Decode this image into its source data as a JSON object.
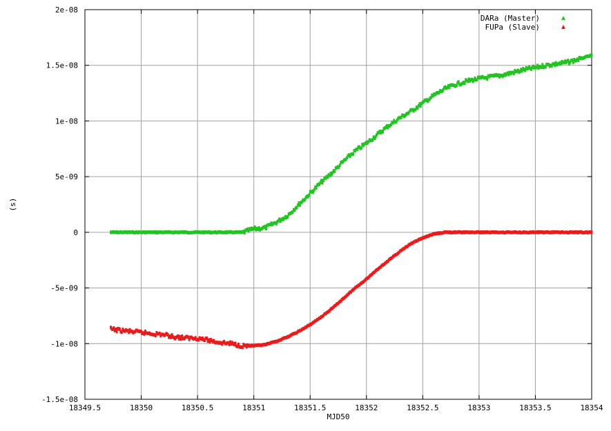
{
  "chart_data": {
    "type": "scatter",
    "title": "",
    "xlabel": "MJD50",
    "ylabel": "(s)",
    "xlim": [
      18349.5,
      18354
    ],
    "ylim": [
      -1.5e-08,
      2e-08
    ],
    "grid": true,
    "legend_position": "top-right",
    "x_ticks": [
      18349.5,
      18350,
      18350.5,
      18351,
      18351.5,
      18352,
      18352.5,
      18353,
      18353.5,
      18354
    ],
    "x_tick_labels": [
      "18349.5",
      "18350",
      "18350.5",
      "18351",
      "18351.5",
      "18352",
      "18352.5",
      "18353",
      "18353.5",
      "18354"
    ],
    "y_ticks": [
      -1.5e-08,
      -1e-08,
      -5e-09,
      0,
      5e-09,
      1e-08,
      1.5e-08,
      2e-08
    ],
    "y_tick_labels": [
      "-1.5e-08",
      "-1e-08",
      "-5e-09",
      "0",
      "5e-09",
      "1e-08",
      "1.5e-08",
      "2e-08"
    ],
    "series": [
      {
        "name": "DARa (Master)",
        "color": "#22c322",
        "marker": "triangle",
        "points": [
          [
            18349.73,
            0
          ],
          [
            18350.0,
            0
          ],
          [
            18350.5,
            0
          ],
          [
            18350.9,
            0
          ],
          [
            18351.0,
            3e-10
          ],
          [
            18351.1,
            4e-10
          ],
          [
            18351.2,
            9e-10
          ],
          [
            18351.3,
            1.5e-09
          ],
          [
            18351.4,
            2.5e-09
          ],
          [
            18351.5,
            3.5e-09
          ],
          [
            18351.6,
            4.5e-09
          ],
          [
            18351.7,
            5.4e-09
          ],
          [
            18351.8,
            6.4e-09
          ],
          [
            18351.9,
            7.3e-09
          ],
          [
            18352.0,
            8e-09
          ],
          [
            18352.1,
            8.8e-09
          ],
          [
            18352.2,
            9.6e-09
          ],
          [
            18352.3,
            1.03e-08
          ],
          [
            18352.4,
            1.09e-08
          ],
          [
            18352.5,
            1.16e-08
          ],
          [
            18352.6,
            1.23e-08
          ],
          [
            18352.7,
            1.29e-08
          ],
          [
            18352.8,
            1.33e-08
          ],
          [
            18352.9,
            1.36e-08
          ],
          [
            18353.0,
            1.38e-08
          ],
          [
            18353.2,
            1.41e-08
          ],
          [
            18353.4,
            1.46e-08
          ],
          [
            18353.6,
            1.5e-08
          ],
          [
            18353.8,
            1.53e-08
          ],
          [
            18354.0,
            1.59e-08
          ]
        ]
      },
      {
        "name": "FUPa (Slave)",
        "color": "#e81c1c",
        "marker": "triangle",
        "points": [
          [
            18349.73,
            -8.7e-09
          ],
          [
            18349.8,
            -8.8e-09
          ],
          [
            18349.9,
            -8.9e-09
          ],
          [
            18350.0,
            -9e-09
          ],
          [
            18350.1,
            -9.1e-09
          ],
          [
            18350.2,
            -9.2e-09
          ],
          [
            18350.3,
            -9.4e-09
          ],
          [
            18350.4,
            -9.5e-09
          ],
          [
            18350.5,
            -9.5e-09
          ],
          [
            18350.6,
            -9.7e-09
          ],
          [
            18350.7,
            -9.9e-09
          ],
          [
            18350.8,
            -1e-08
          ],
          [
            18350.9,
            -1.02e-08
          ],
          [
            18351.0,
            -1.02e-08
          ],
          [
            18351.1,
            -1.01e-08
          ],
          [
            18351.2,
            -9.8e-09
          ],
          [
            18351.3,
            -9.4e-09
          ],
          [
            18351.4,
            -8.9e-09
          ],
          [
            18351.5,
            -8.3e-09
          ],
          [
            18351.6,
            -7.6e-09
          ],
          [
            18351.7,
            -6.8e-09
          ],
          [
            18351.8,
            -5.9e-09
          ],
          [
            18351.9,
            -5e-09
          ],
          [
            18352.0,
            -4.2e-09
          ],
          [
            18352.1,
            -3.3e-09
          ],
          [
            18352.2,
            -2.5e-09
          ],
          [
            18352.3,
            -1.7e-09
          ],
          [
            18352.4,
            -1e-09
          ],
          [
            18352.5,
            -5e-10
          ],
          [
            18352.6,
            -1.5e-10
          ],
          [
            18352.7,
            0
          ],
          [
            18352.8,
            0
          ],
          [
            18353.0,
            0
          ],
          [
            18353.5,
            0
          ],
          [
            18354.0,
            0
          ]
        ]
      }
    ]
  }
}
